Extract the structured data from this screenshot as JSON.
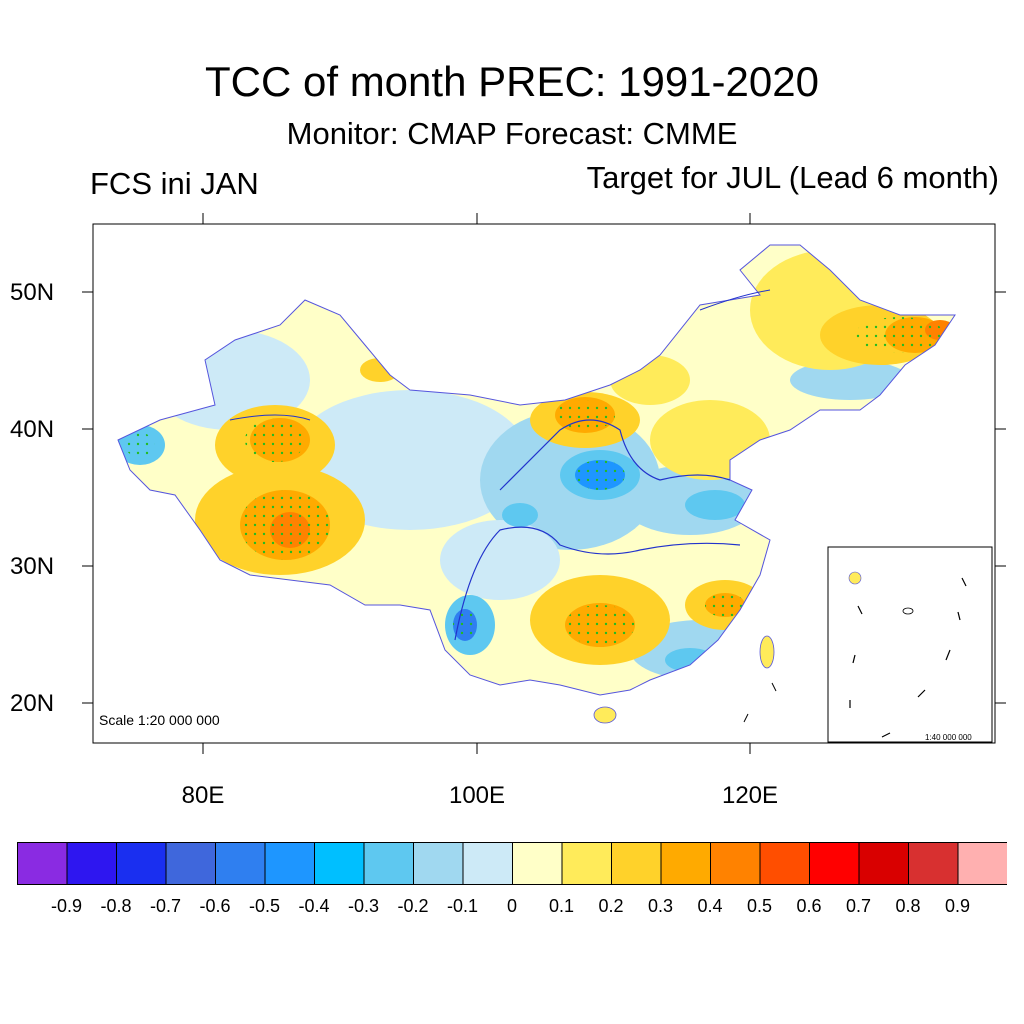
{
  "title": "TCC of month PREC: 1991-2020",
  "subtitle": "Monitor: CMAP   Forecast: CMME",
  "left_label": "FCS ini JAN",
  "right_label": "Target for JUL (Lead 6 month)",
  "axes": {
    "lat_labels": [
      "50N",
      "40N",
      "30N",
      "20N"
    ],
    "lon_labels": [
      "80E",
      "100E",
      "120E"
    ]
  },
  "scale_main": "Scale 1:20 000 000",
  "scale_inset": "1:40 000 000",
  "colorbar": {
    "colors": [
      "#8a2be2",
      "#2e16f0",
      "#1a2ff0",
      "#3f67dc",
      "#2f7ff0",
      "#1e96ff",
      "#00bfff",
      "#5ec8f0",
      "#a0d8f0",
      "#cdeaf7",
      "#ffffc8",
      "#ffeb5a",
      "#ffd22a",
      "#ffaa00",
      "#ff8200",
      "#ff4e00",
      "#ff0000",
      "#d90000",
      "#d83030",
      "#ffb0b0"
    ],
    "ticks": [
      "-0.9",
      "-0.8",
      "-0.7",
      "-0.6",
      "-0.5",
      "-0.4",
      "-0.3",
      "-0.2",
      "-0.1",
      "0",
      "0.1",
      "0.2",
      "0.3",
      "0.4",
      "0.5",
      "0.6",
      "0.7",
      "0.8",
      "0.9"
    ]
  }
}
